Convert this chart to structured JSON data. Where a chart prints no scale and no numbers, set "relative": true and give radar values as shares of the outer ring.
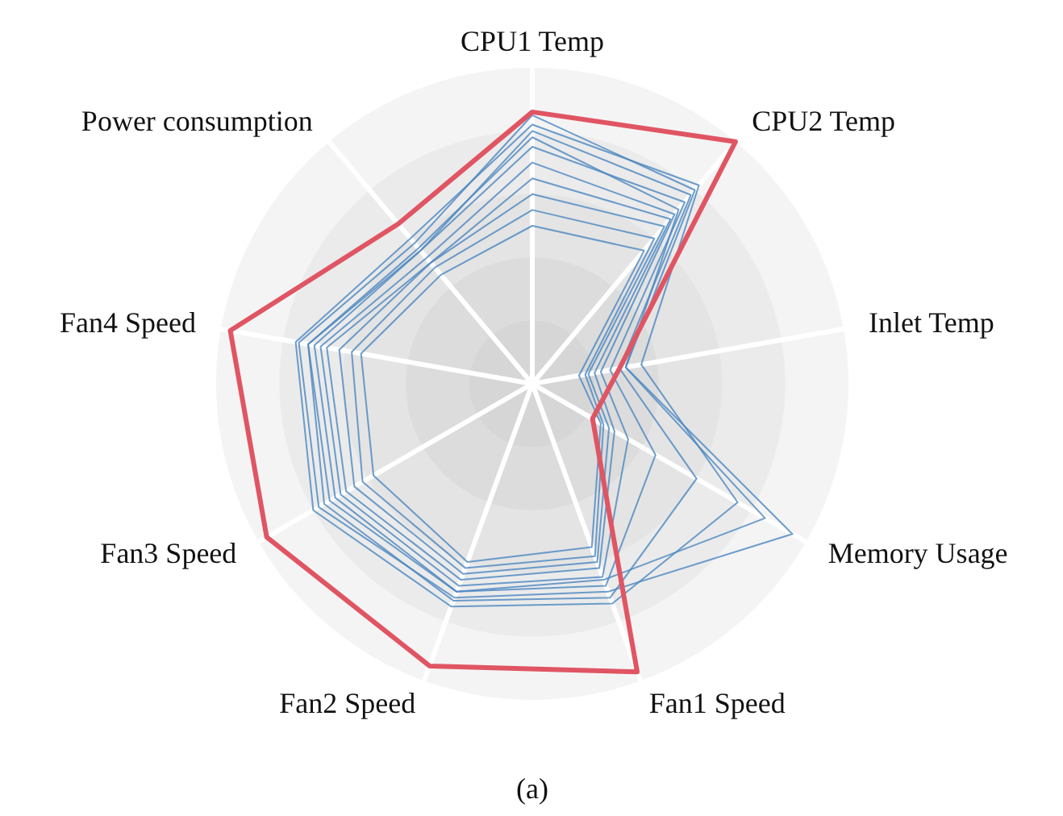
{
  "chart_data": {
    "type": "radar",
    "relative": true,
    "grid": true,
    "categories": [
      "CPU1 Temp",
      "CPU2 Temp",
      "Inlet Temp",
      "Memory Usage",
      "Fan1 Speed",
      "Fan2 Speed",
      "Fan3 Speed",
      "Fan4 Speed",
      "Power consumption"
    ],
    "series": [
      {
        "color": "#4a86c0",
        "values": [
          0.85,
          0.8,
          0.3,
          0.95,
          0.7,
          0.72,
          0.78,
          0.75,
          0.58
        ]
      },
      {
        "color": "#4a86c0",
        "values": [
          0.8,
          0.78,
          0.28,
          0.6,
          0.72,
          0.73,
          0.76,
          0.72,
          0.55
        ]
      },
      {
        "color": "#4a86c0",
        "values": [
          0.75,
          0.75,
          0.25,
          0.45,
          0.68,
          0.7,
          0.72,
          0.7,
          0.55
        ]
      },
      {
        "color": "#4a86c0",
        "values": [
          0.7,
          0.7,
          0.22,
          0.35,
          0.65,
          0.68,
          0.7,
          0.68,
          0.52
        ]
      },
      {
        "color": "#4a86c0",
        "values": [
          0.65,
          0.68,
          0.2,
          0.3,
          0.62,
          0.66,
          0.68,
          0.66,
          0.5
        ]
      },
      {
        "color": "#4a86c0",
        "values": [
          0.6,
          0.65,
          0.18,
          0.28,
          0.6,
          0.64,
          0.65,
          0.62,
          0.5
        ]
      },
      {
        "color": "#4a86c0",
        "values": [
          0.55,
          0.6,
          0.17,
          0.26,
          0.58,
          0.62,
          0.62,
          0.58,
          0.48
        ]
      },
      {
        "color": "#4a86c0",
        "values": [
          0.5,
          0.55,
          0.15,
          0.25,
          0.55,
          0.6,
          0.58,
          0.55,
          0.45
        ]
      },
      {
        "color": "#4a86c0",
        "values": [
          0.82,
          0.82,
          0.35,
          0.75,
          0.74,
          0.75,
          0.8,
          0.76,
          0.6
        ]
      },
      {
        "color": "#4a86c0",
        "values": [
          0.78,
          0.72,
          0.3,
          0.85,
          0.66,
          0.7,
          0.74,
          0.72,
          0.56
        ]
      },
      {
        "color": "#e05563",
        "values": [
          0.86,
          1.0,
          0.28,
          0.22,
          0.97,
          0.95,
          0.97,
          0.97,
          0.66
        ]
      }
    ],
    "annotations": [
      "(a)"
    ]
  }
}
